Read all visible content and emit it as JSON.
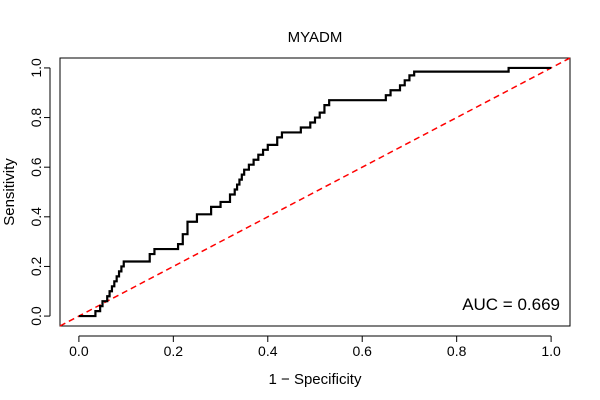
{
  "chart_data": {
    "type": "line",
    "title": "MYADM",
    "xlabel": "1 − Specificity",
    "ylabel": "Sensitivity",
    "xlim": [
      -0.04,
      1.04
    ],
    "ylim": [
      -0.04,
      1.04
    ],
    "x_ticks": [
      0.0,
      0.2,
      0.4,
      0.6,
      0.8,
      1.0
    ],
    "y_ticks": [
      0.0,
      0.2,
      0.4,
      0.6,
      0.8,
      1.0
    ],
    "x_tick_labels": [
      "0.0",
      "0.2",
      "0.4",
      "0.6",
      "0.8",
      "1.0"
    ],
    "y_tick_labels": [
      "0.0",
      "0.2",
      "0.4",
      "0.6",
      "0.8",
      "1.0"
    ],
    "grid": false,
    "annotation": "AUC = 0.669",
    "colors": {
      "roc": "#000000",
      "reference": "#ff0000"
    },
    "series": [
      {
        "style": "step",
        "x": [
          0.0,
          0.035,
          0.035,
          0.045,
          0.045,
          0.05,
          0.05,
          0.06,
          0.06,
          0.065,
          0.065,
          0.07,
          0.07,
          0.075,
          0.075,
          0.08,
          0.08,
          0.085,
          0.085,
          0.09,
          0.09,
          0.095,
          0.095,
          0.1,
          0.1,
          0.15,
          0.15,
          0.16,
          0.16,
          0.21,
          0.21,
          0.22,
          0.22,
          0.23,
          0.23,
          0.25,
          0.25,
          0.28,
          0.28,
          0.3,
          0.3,
          0.32,
          0.32,
          0.33,
          0.33,
          0.335,
          0.335,
          0.34,
          0.34,
          0.345,
          0.345,
          0.35,
          0.35,
          0.36,
          0.36,
          0.37,
          0.37,
          0.38,
          0.38,
          0.39,
          0.39,
          0.4,
          0.4,
          0.42,
          0.42,
          0.43,
          0.43,
          0.47,
          0.47,
          0.49,
          0.49,
          0.5,
          0.5,
          0.51,
          0.51,
          0.52,
          0.52,
          0.53,
          0.53,
          0.65,
          0.65,
          0.66,
          0.66,
          0.68,
          0.68,
          0.69,
          0.69,
          0.7,
          0.7,
          0.71,
          0.71,
          0.72,
          0.72,
          0.91,
          0.91,
          1.0
        ],
        "y": [
          0.0,
          0.0,
          0.02,
          0.02,
          0.04,
          0.04,
          0.06,
          0.06,
          0.08,
          0.08,
          0.1,
          0.1,
          0.12,
          0.12,
          0.14,
          0.14,
          0.16,
          0.16,
          0.18,
          0.18,
          0.2,
          0.2,
          0.22,
          0.22,
          0.22,
          0.22,
          0.25,
          0.25,
          0.27,
          0.27,
          0.29,
          0.29,
          0.33,
          0.33,
          0.38,
          0.38,
          0.41,
          0.41,
          0.44,
          0.44,
          0.46,
          0.46,
          0.49,
          0.49,
          0.51,
          0.51,
          0.53,
          0.53,
          0.55,
          0.55,
          0.57,
          0.57,
          0.59,
          0.59,
          0.61,
          0.61,
          0.63,
          0.63,
          0.65,
          0.65,
          0.67,
          0.67,
          0.69,
          0.69,
          0.72,
          0.72,
          0.74,
          0.74,
          0.76,
          0.76,
          0.78,
          0.78,
          0.8,
          0.8,
          0.82,
          0.82,
          0.85,
          0.85,
          0.87,
          0.87,
          0.89,
          0.89,
          0.91,
          0.91,
          0.93,
          0.93,
          0.95,
          0.95,
          0.97,
          0.97,
          0.985,
          0.985,
          0.985,
          0.985,
          1.0,
          1.0
        ]
      },
      {
        "style": "dashed",
        "x": [
          -0.04,
          1.04
        ],
        "y": [
          -0.04,
          1.04
        ]
      }
    ]
  }
}
